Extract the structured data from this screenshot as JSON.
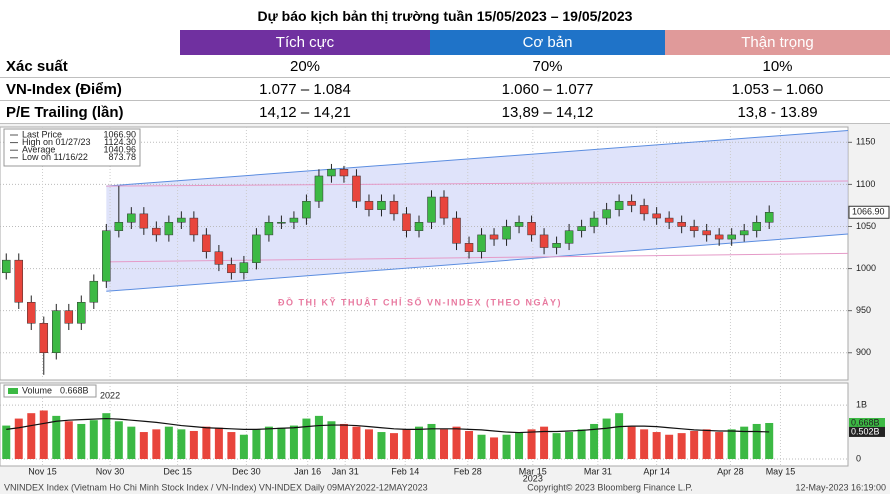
{
  "header": {
    "title": "Dự báo kịch bản thị trường tuần 15/05/2023 – 19/05/2023"
  },
  "table": {
    "columns": [
      "Tích cực",
      "Cơ bản",
      "Thận trọng"
    ],
    "column_colors": [
      "#7030a0",
      "#1f73c8",
      "#e09a9a"
    ],
    "rows": [
      [
        "Xác suất",
        "20%",
        "70%",
        "10%"
      ],
      [
        "VN-Index (Điểm)",
        "1.077 – 1.084",
        "1.060 – 1.077",
        "1.053 – 1.060"
      ],
      [
        "P/E Trailing (lần)",
        "14,12 – 14,21",
        "13,89 – 14,12",
        "13,8 - 13.89"
      ]
    ]
  },
  "chart_data": {
    "type": "candlestick",
    "annotation": "ĐỒ THỊ KỸ THUẬT CHỈ SỐ VN-INDEX (THEO NGÀY)",
    "legend": [
      {
        "label": "Last Price",
        "value": "1066.90"
      },
      {
        "label": "High on 01/27/23",
        "value": "1124.30"
      },
      {
        "label": "Average",
        "value": "1040.96"
      },
      {
        "label": "Low on 11/16/22",
        "value": "873.78"
      }
    ],
    "last_label": "1066.90",
    "up_color": "#3cb944",
    "down_color": "#e8453c",
    "xlim": [
      -0.5,
      67.3
    ],
    "xticks": [
      {
        "value": 2.9,
        "label": "Nov 15"
      },
      {
        "value": 8.3,
        "label": "Nov 30"
      },
      {
        "value": 13.7,
        "label": "Dec 15"
      },
      {
        "value": 19.2,
        "label": "Dec 30"
      },
      {
        "value": 24.1,
        "label": "Jan 16"
      },
      {
        "value": 27.1,
        "label": "Jan 31"
      },
      {
        "value": 31.9,
        "label": "Feb 14"
      },
      {
        "value": 36.9,
        "label": "Feb 28"
      },
      {
        "value": 42.1,
        "label": "Mar 15"
      },
      {
        "value": 47.3,
        "label": "Mar 31"
      },
      {
        "value": 52,
        "label": "Apr 14"
      },
      {
        "value": 57.9,
        "label": "Apr 28"
      },
      {
        "value": 61.9,
        "label": "May 15"
      }
    ],
    "year_labels": [
      {
        "value": 8.3,
        "label": "2022"
      },
      {
        "value": 42.1,
        "label": "2023"
      }
    ],
    "ylim": [
      870,
      1167
    ],
    "yticks": [
      900,
      950,
      1000,
      1050,
      1100,
      1150
    ],
    "grid": true,
    "open": [
      995,
      1010,
      960,
      935,
      900,
      950,
      935,
      960,
      985,
      1045,
      1055,
      1065,
      1048,
      1040,
      1055,
      1060,
      1040,
      1020,
      1005,
      995,
      1007,
      1040,
      1055,
      1055,
      1060,
      1080,
      1110,
      1118,
      1110,
      1080,
      1070,
      1080,
      1065,
      1045,
      1055,
      1085,
      1060,
      1030,
      1020,
      1040,
      1035,
      1050,
      1055,
      1040,
      1025,
      1030,
      1045,
      1050,
      1060,
      1070,
      1080,
      1075,
      1065,
      1060,
      1055,
      1050,
      1045,
      1040,
      1035,
      1040,
      1045,
      1055
    ],
    "high": [
      1018,
      1018,
      968,
      943,
      958,
      958,
      968,
      993,
      1053,
      1098,
      1073,
      1073,
      1056,
      1063,
      1068,
      1068,
      1048,
      1028,
      1013,
      1015,
      1048,
      1063,
      1063,
      1068,
      1088,
      1118,
      1124.3,
      1122,
      1118,
      1088,
      1088,
      1088,
      1073,
      1063,
      1093,
      1093,
      1068,
      1038,
      1048,
      1048,
      1058,
      1063,
      1063,
      1048,
      1038,
      1053,
      1058,
      1068,
      1078,
      1088,
      1088,
      1083,
      1073,
      1068,
      1063,
      1058,
      1053,
      1048,
      1048,
      1053,
      1063,
      1075
    ],
    "low": [
      987,
      952,
      927,
      873.78,
      892,
      927,
      927,
      952,
      977,
      1037,
      1047,
      1040,
      1032,
      1032,
      1047,
      1032,
      1012,
      997,
      987,
      987,
      999,
      1032,
      1047,
      1047,
      1052,
      1072,
      1102,
      1102,
      1072,
      1062,
      1062,
      1057,
      1037,
      1037,
      1047,
      1052,
      1022,
      1012,
      1012,
      1027,
      1027,
      1042,
      1032,
      1017,
      1017,
      1022,
      1037,
      1042,
      1052,
      1062,
      1067,
      1057,
      1052,
      1047,
      1042,
      1037,
      1032,
      1027,
      1027,
      1032,
      1037,
      1047
    ],
    "close": [
      1010,
      960,
      935,
      900,
      950,
      935,
      960,
      985,
      1045,
      1055,
      1065,
      1048,
      1040,
      1055,
      1060,
      1040,
      1020,
      1005,
      995,
      1007,
      1040,
      1055,
      1055,
      1060,
      1080,
      1110,
      1118,
      1110,
      1080,
      1070,
      1080,
      1065,
      1045,
      1055,
      1085,
      1060,
      1030,
      1020,
      1040,
      1035,
      1050,
      1055,
      1040,
      1025,
      1030,
      1045,
      1050,
      1060,
      1070,
      1080,
      1075,
      1065,
      1060,
      1055,
      1050,
      1045,
      1040,
      1035,
      1040,
      1045,
      1055,
      1066.9
    ],
    "channels": [
      {
        "color": "#5b8de0",
        "x": [
          8,
          67.3
        ],
        "y": [
          1098,
          1164
        ]
      },
      {
        "color": "#5b8de0",
        "x": [
          8,
          67.3
        ],
        "y": [
          973,
          1041
        ]
      },
      {
        "color": "#e59bc8",
        "x": [
          8,
          67.3
        ],
        "y": [
          1098,
          1104
        ]
      },
      {
        "color": "#e59bc8",
        "x": [
          8,
          67.3
        ],
        "y": [
          1008,
          1018
        ]
      }
    ],
    "channel_fill": "#c9d0f7",
    "volume_name": "Volume",
    "volume_label": "0.668B",
    "volume_avg_label": "0.502B",
    "volume_ylim": [
      -0.13,
      1.41
    ],
    "volume_yticks": [
      {
        "value": 1,
        "label": "1B"
      },
      0
    ],
    "volume": [
      0.62,
      0.75,
      0.85,
      0.9,
      0.8,
      0.7,
      0.65,
      0.72,
      0.85,
      0.7,
      0.6,
      0.5,
      0.55,
      0.6,
      0.55,
      0.52,
      0.6,
      0.58,
      0.5,
      0.45,
      0.55,
      0.6,
      0.58,
      0.62,
      0.75,
      0.8,
      0.7,
      0.65,
      0.6,
      0.55,
      0.5,
      0.48,
      0.55,
      0.6,
      0.65,
      0.55,
      0.6,
      0.52,
      0.45,
      0.4,
      0.45,
      0.5,
      0.55,
      0.6,
      0.48,
      0.5,
      0.55,
      0.65,
      0.75,
      0.85,
      0.6,
      0.55,
      0.5,
      0.45,
      0.48,
      0.52,
      0.55,
      0.5,
      0.55,
      0.6,
      0.65,
      0.668
    ],
    "volume_avg": [
      0.55,
      0.58,
      0.62,
      0.66,
      0.7,
      0.72,
      0.73,
      0.74,
      0.75,
      0.74,
      0.72,
      0.7,
      0.68,
      0.65,
      0.62,
      0.6,
      0.58,
      0.57,
      0.56,
      0.55,
      0.55,
      0.56,
      0.57,
      0.58,
      0.6,
      0.62,
      0.63,
      0.63,
      0.62,
      0.6,
      0.58,
      0.56,
      0.55,
      0.55,
      0.56,
      0.56,
      0.56,
      0.55,
      0.54,
      0.52,
      0.5,
      0.49,
      0.5,
      0.51,
      0.51,
      0.52,
      0.53,
      0.55,
      0.57,
      0.6,
      0.61,
      0.61,
      0.6,
      0.58,
      0.56,
      0.54,
      0.53,
      0.52,
      0.52,
      0.51,
      0.51,
      0.502
    ],
    "footer": [
      "VNINDEX Index (Vietnam Ho Chi Minh Stock Index / VN-Index) VN-INDEX  Daily 09MAY2022-12MAY2023",
      "Copyright© 2023 Bloomberg Finance L.P.",
      "12-May-2023 16:19:00"
    ]
  }
}
